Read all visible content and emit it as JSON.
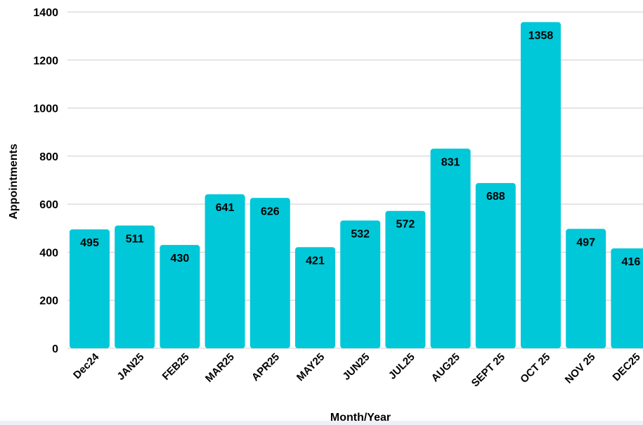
{
  "chart_data": {
    "type": "bar",
    "categories": [
      "Dec24",
      "JAN25",
      "FEB25",
      "MAR25",
      "APR25",
      "MAY25",
      "JUN25",
      "JUL25",
      "AUG25",
      "SEPT 25",
      "OCT 25",
      "NOV 25",
      "DEC25"
    ],
    "values": [
      495,
      511,
      430,
      641,
      626,
      421,
      532,
      572,
      831,
      688,
      1358,
      497,
      416
    ],
    "title": "",
    "xlabel": "Month/Year",
    "ylabel": "Appointments",
    "ylim": [
      0,
      1400
    ],
    "yticks": [
      0,
      200,
      400,
      600,
      800,
      1000,
      1200,
      1400
    ],
    "grid": true,
    "legend": "none",
    "colors": {
      "bar": "#00c8d9",
      "grid": "#cccccc",
      "text": "#000000"
    }
  }
}
